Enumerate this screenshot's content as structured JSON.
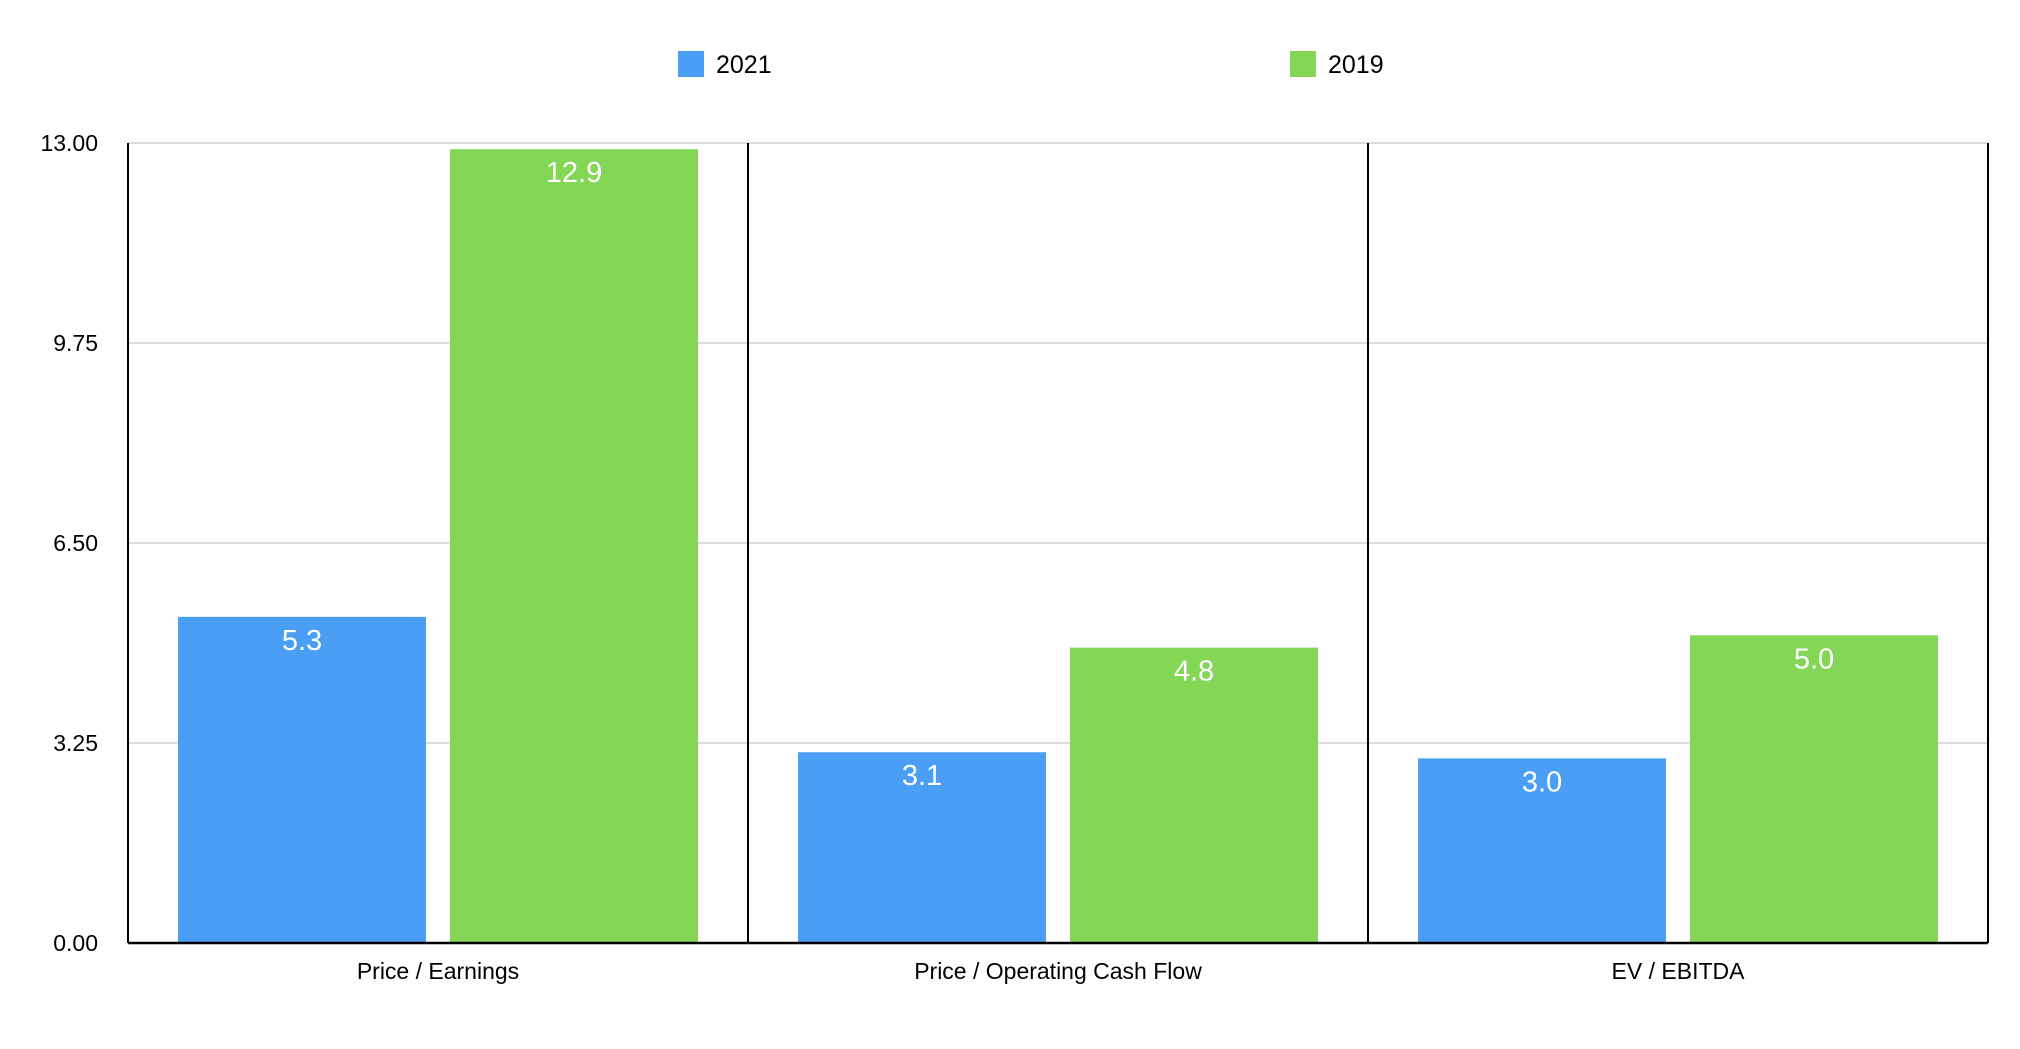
{
  "chart_data": {
    "type": "bar",
    "title": "",
    "xlabel": "",
    "ylabel": "",
    "categories": [
      "Price / Earnings",
      "Price / Operating Cash Flow",
      "EV / EBITDA"
    ],
    "series": [
      {
        "name": "2021",
        "values": [
          5.3,
          3.1,
          3.0
        ],
        "labels": [
          "5.3",
          "3.1",
          "3.0"
        ],
        "color": "#4a9ff5"
      },
      {
        "name": "2019",
        "values": [
          12.9,
          4.8,
          5.0
        ],
        "labels": [
          "12.9",
          "4.8",
          "5.0"
        ],
        "color": "#84d656"
      }
    ],
    "ylim": [
      0,
      13
    ],
    "yticks": [
      0,
      3.25,
      6.5,
      9.75,
      13
    ],
    "ytick_labels": [
      "0.00",
      "3.25",
      "6.50",
      "9.75",
      "13.00"
    ],
    "grid": true,
    "legend_position": "top-center",
    "data_label_color": "#ffffff",
    "grid_color": "#c8c8c8",
    "axis_color": "#000000"
  }
}
